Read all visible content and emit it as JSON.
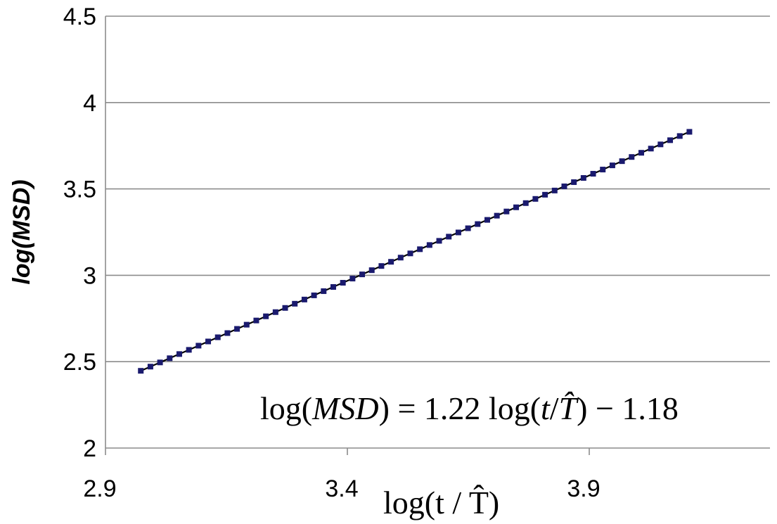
{
  "chart_data": {
    "type": "scatter",
    "title": "",
    "xlabel": "log(t / T̂)",
    "ylabel": "log(MSD)",
    "xlim": [
      2.9,
      4.4
    ],
    "ylim": [
      2,
      4.5
    ],
    "x_ticks": [
      "2.9",
      "3.4",
      "3.9"
    ],
    "y_ticks": [
      "2",
      "2.5",
      "3",
      "3.5",
      "4",
      "4.5"
    ],
    "grid": "horizontal",
    "legend": "none",
    "marker_color": "#1a1a6e",
    "fit_line": {
      "slope": 1.22,
      "intercept": -1.18,
      "color": "#000000"
    },
    "annotation": {
      "lhs_fn": "log(",
      "lhs_var": "MSD",
      "rhs_start": ") = 1.22 log(",
      "rhs_t": "t",
      "rhs_slash": "/",
      "rhs_T": "T̂",
      "rhs_end": ") − 1.18"
    },
    "series": [
      {
        "x_start": 2.973,
        "x_end": 4.107,
        "count": 58
      }
    ]
  }
}
